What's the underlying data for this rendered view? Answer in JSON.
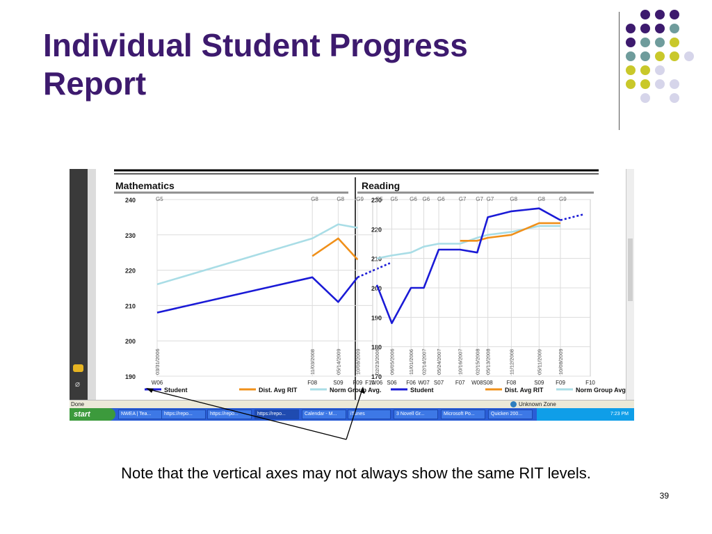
{
  "slide": {
    "title_line1": "Individual Student Progress",
    "title_line2": "Report",
    "note": "Note that the vertical axes may not always show the same RIT levels.",
    "page_number": "39",
    "title_color": "#3d1a6e"
  },
  "decoration_colors": {
    "purple": "#3d1a6e",
    "teal": "#6f9c9c",
    "yellow": "#c9c82a",
    "lavender": "#d6d5ea"
  },
  "browser": {
    "status_text": "Done",
    "zone_text": "Unknown Zone",
    "start_label": "start",
    "taskbar_items": [
      "NWEA | Tea...",
      "https://repo...",
      "https://repo...",
      "https://repo...",
      "Calendar - M...",
      "iTunes",
      "3 Novell Gr...",
      "Microsoft Po...",
      "Quicken 200..."
    ],
    "clock": "7:23 PM",
    "side_icons": [
      "chat-bubbles-icon",
      "paperclip-icon"
    ]
  },
  "chart_data": [
    {
      "type": "line",
      "title": "Mathematics",
      "ylim": [
        190,
        240
      ],
      "yticks": [
        190,
        200,
        210,
        220,
        230,
        240
      ],
      "x_term_labels": [
        "W06",
        "F08",
        "S09",
        "F09",
        "F10"
      ],
      "x_term_positions": [
        0,
        0.72,
        0.84,
        0.93,
        1.1
      ],
      "grade_labels": [
        "G5",
        "G8",
        "G8",
        "G9"
      ],
      "grade_positions": [
        0,
        0.72,
        0.84,
        0.93
      ],
      "test_dates": [
        "03/31/2006",
        "11/03/2008",
        "05/14/2009",
        "10/08/2009"
      ],
      "test_date_positions": [
        0,
        0.72,
        0.84,
        0.93
      ],
      "grid": true,
      "legend_position": "bottom",
      "series": [
        {
          "name": "Student",
          "color": "#1a1ad6",
          "x": [
            0,
            0.72,
            0.84,
            0.93
          ],
          "y": [
            208,
            218,
            211,
            218
          ]
        },
        {
          "name": "Dist. Avg RIT",
          "color": "#f0901a",
          "x": [
            0.72,
            0.84,
            0.93
          ],
          "y": [
            224,
            229,
            223
          ]
        },
        {
          "name": "Norm Group Avg.",
          "color": "#a9dde6",
          "x": [
            0,
            0.72,
            0.84,
            0.93
          ],
          "y": [
            216,
            229,
            233,
            232
          ]
        }
      ],
      "projection": {
        "color": "#1a1ad6",
        "x": [
          0.93,
          1.08
        ],
        "y": [
          218,
          222
        ]
      }
    },
    {
      "type": "line",
      "title": "Reading",
      "ylim": [
        170,
        230
      ],
      "yticks": [
        170,
        180,
        190,
        200,
        210,
        220,
        230
      ],
      "x_term_labels": [
        "W06",
        "S06",
        "F06",
        "W07",
        "S07",
        "F07",
        "W08",
        "S08",
        "F08",
        "S09",
        "F09",
        "F10"
      ],
      "x_term_positions": [
        0,
        0.07,
        0.16,
        0.22,
        0.29,
        0.39,
        0.47,
        0.52,
        0.63,
        0.76,
        0.86,
        1.0
      ],
      "grade_labels": [
        "G5",
        "G5",
        "G6",
        "G6",
        "G6",
        "G7",
        "G7",
        "G7",
        "G8",
        "G8",
        "G9"
      ],
      "grade_positions": [
        0,
        0.07,
        0.16,
        0.22,
        0.29,
        0.39,
        0.47,
        0.52,
        0.63,
        0.76,
        0.86
      ],
      "test_dates": [
        "02/23/2006",
        "06/05/2006",
        "11/01/2006",
        "02/14/2007",
        "05/24/2007",
        "10/16/2007",
        "02/15/2008",
        "05/13/2008",
        "11/12/2008",
        "05/11/2009",
        "10/08/2009"
      ],
      "test_date_positions": [
        0,
        0.07,
        0.16,
        0.22,
        0.29,
        0.39,
        0.47,
        0.52,
        0.63,
        0.76,
        0.86
      ],
      "grid": true,
      "legend_position": "bottom",
      "series": [
        {
          "name": "Student",
          "color": "#1a1ad6",
          "x": [
            0,
            0.07,
            0.16,
            0.22,
            0.29,
            0.39,
            0.47,
            0.52,
            0.63,
            0.76,
            0.86
          ],
          "y": [
            201,
            188,
            200,
            200,
            213,
            213,
            212,
            224,
            226,
            227,
            223
          ]
        },
        {
          "name": "Dist. Avg RIT",
          "color": "#f0901a",
          "x": [
            0.39,
            0.47,
            0.52,
            0.63,
            0.76,
            0.86
          ],
          "y": [
            216,
            216,
            217,
            218,
            222,
            222
          ]
        },
        {
          "name": "Norm Group Avg.",
          "color": "#a9dde6",
          "x": [
            0,
            0.07,
            0.16,
            0.22,
            0.29,
            0.39,
            0.47,
            0.52,
            0.63,
            0.76,
            0.86
          ],
          "y": [
            210,
            211,
            212,
            214,
            215,
            215,
            217,
            218,
            219,
            221,
            221
          ]
        }
      ],
      "projection": {
        "color": "#1a1ad6",
        "x": [
          0.86,
          0.97
        ],
        "y": [
          223,
          225
        ]
      }
    }
  ]
}
